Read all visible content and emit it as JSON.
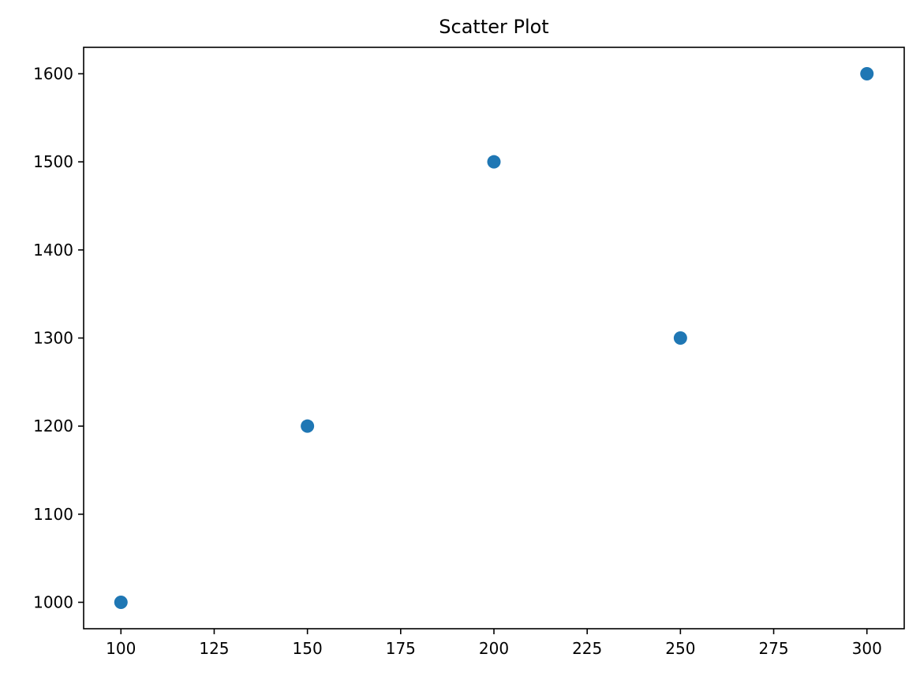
{
  "chart_data": {
    "type": "scatter",
    "title": "Scatter Plot",
    "xlabel": "",
    "ylabel": "",
    "series": [
      {
        "color": "#1f77b4",
        "points": [
          {
            "x": 100,
            "y": 1000
          },
          {
            "x": 150,
            "y": 1200
          },
          {
            "x": 200,
            "y": 1500
          },
          {
            "x": 250,
            "y": 1300
          },
          {
            "x": 300,
            "y": 1600
          }
        ]
      }
    ],
    "xlim": [
      90,
      310
    ],
    "ylim": [
      970,
      1630
    ],
    "x_ticks": [
      100,
      125,
      150,
      175,
      200,
      225,
      250,
      275,
      300
    ],
    "y_ticks": [
      1000,
      1100,
      1200,
      1300,
      1400,
      1500,
      1600
    ],
    "grid": false,
    "legend": "none"
  }
}
